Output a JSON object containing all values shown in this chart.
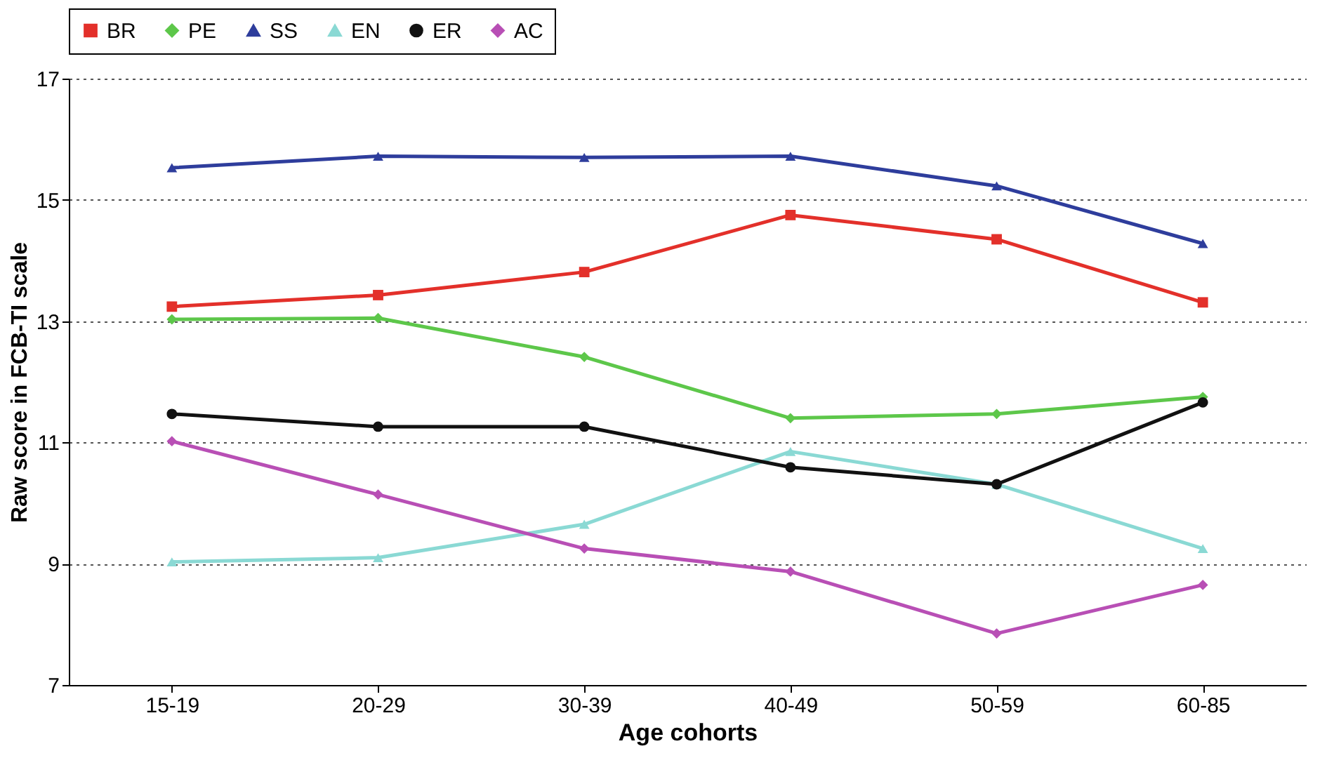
{
  "chart_data": {
    "type": "line",
    "xlabel": "Age cohorts",
    "ylabel": "Raw score in FCB-TI scale",
    "categories": [
      "15-19",
      "20-29",
      "30-39",
      "40-49",
      "50-59",
      "60-85"
    ],
    "series": [
      {
        "name": "BR",
        "color": "#e3302a",
        "marker": "square",
        "values": [
          13.24,
          13.43,
          13.81,
          14.75,
          14.35,
          13.31
        ]
      },
      {
        "name": "PE",
        "color": "#5dc74a",
        "marker": "diamond",
        "values": [
          13.03,
          13.05,
          12.41,
          11.4,
          11.47,
          11.75
        ]
      },
      {
        "name": "SS",
        "color": "#2e3d9c",
        "marker": "triangle",
        "values": [
          15.53,
          15.72,
          15.7,
          15.72,
          15.23,
          14.28
        ]
      },
      {
        "name": "EN",
        "color": "#8ad9d4",
        "marker": "triangle",
        "values": [
          9.03,
          9.1,
          9.65,
          10.85,
          10.31,
          9.25
        ]
      },
      {
        "name": "ER",
        "color": "#111111",
        "marker": "circle",
        "values": [
          11.47,
          11.26,
          11.26,
          10.59,
          10.31,
          11.66
        ]
      },
      {
        "name": "AC",
        "color": "#b84fb5",
        "marker": "diamond",
        "values": [
          11.02,
          10.14,
          9.25,
          8.87,
          7.85,
          8.65
        ]
      }
    ],
    "ylim": [
      7,
      17
    ],
    "yticks": [
      7,
      9,
      11,
      13,
      15,
      17
    ],
    "grid": "y",
    "legend": "top",
    "line_style": "solid"
  }
}
